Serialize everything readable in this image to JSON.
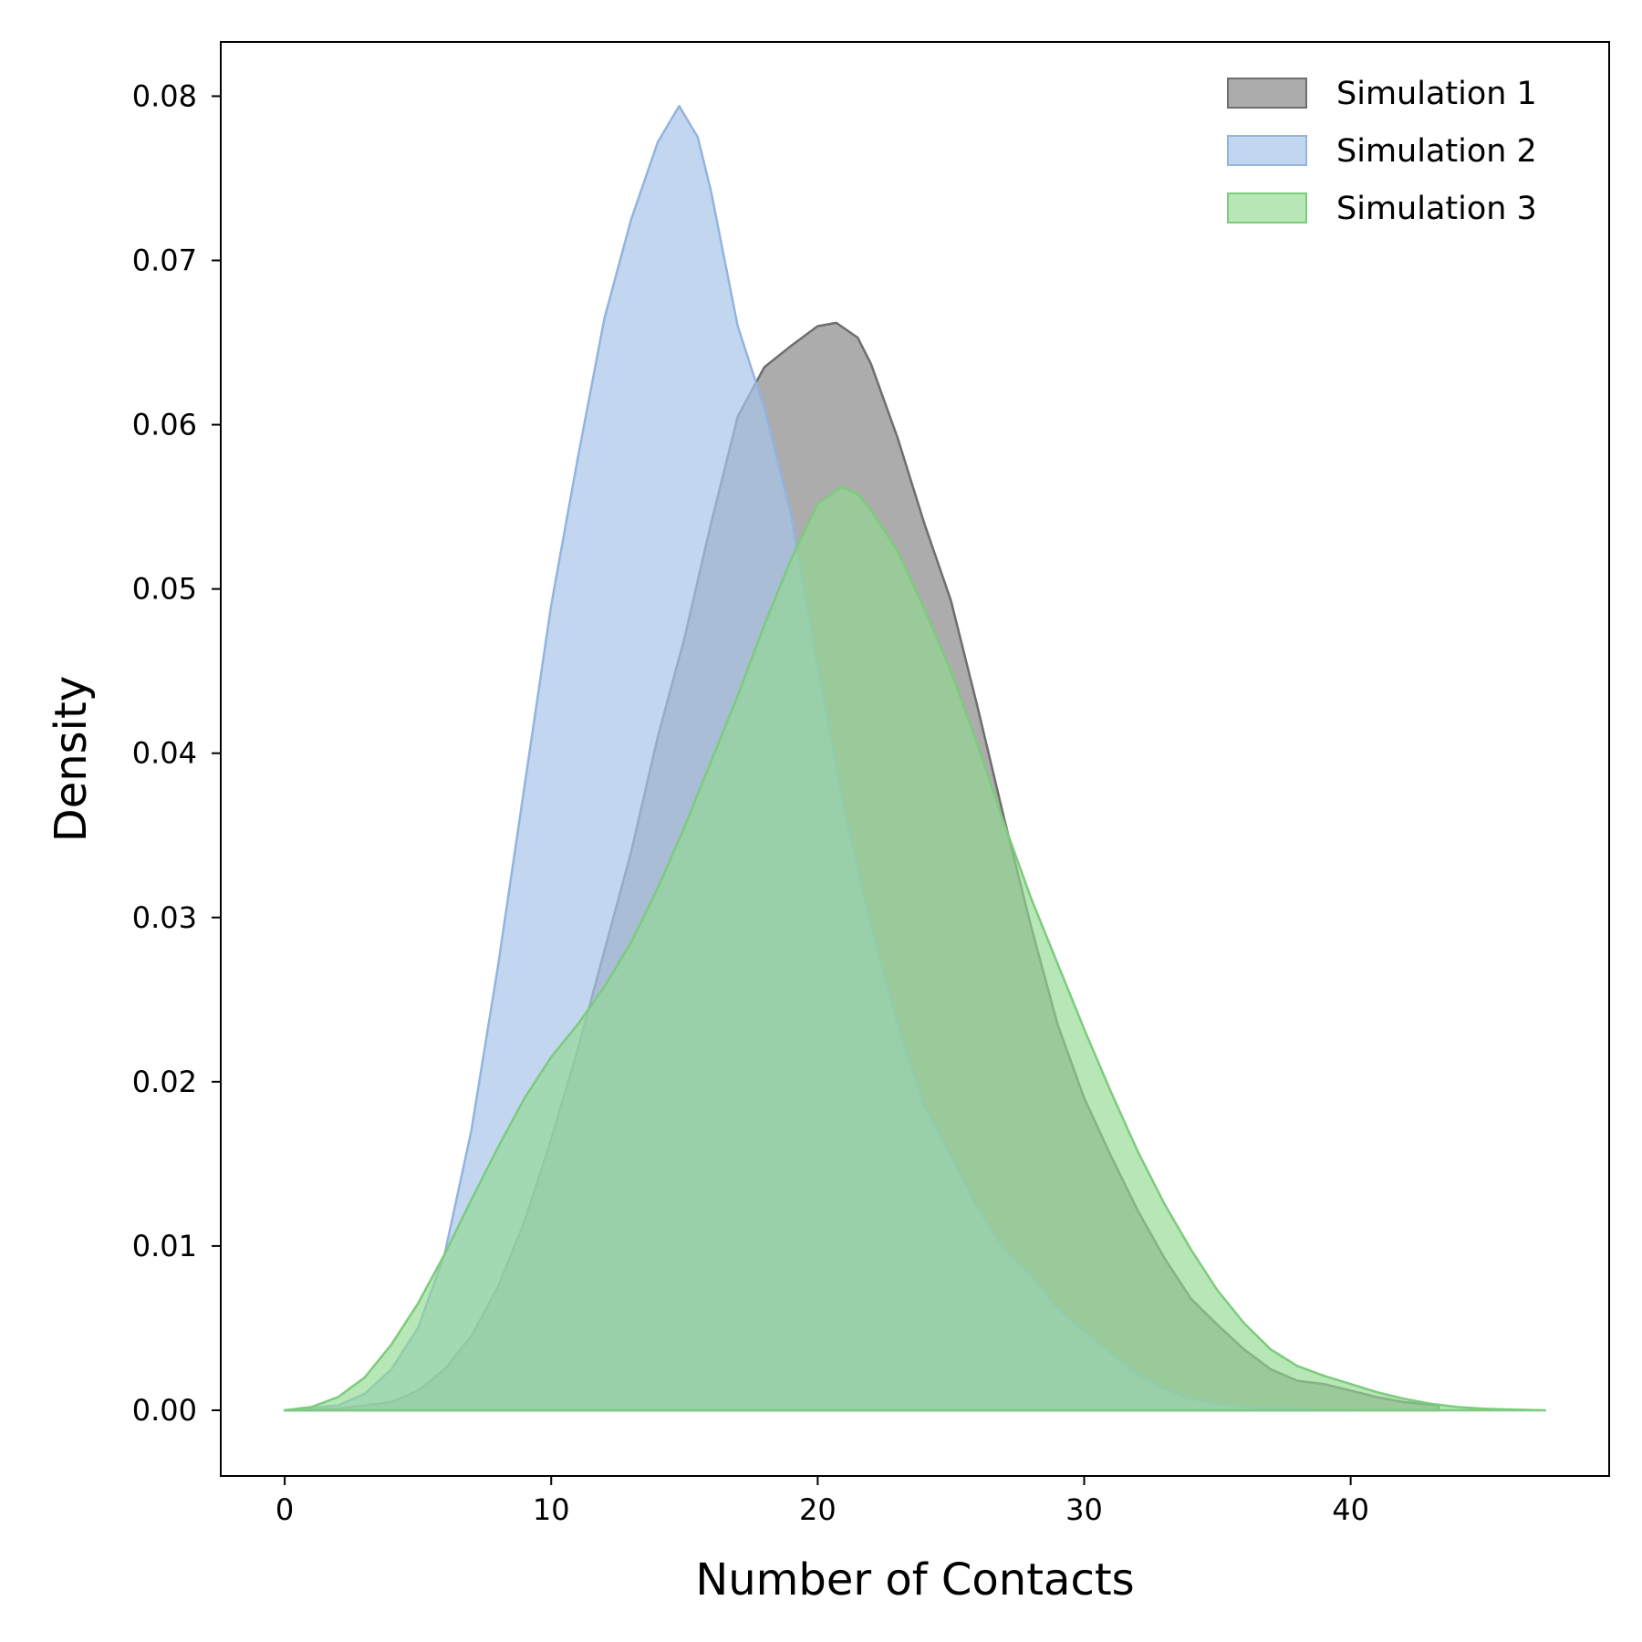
{
  "chart_data": {
    "type": "area",
    "title": "",
    "xlabel": "Number of Contacts",
    "ylabel": "Density",
    "xlim": [
      -2.4,
      49.7
    ],
    "ylim": [
      -0.004,
      0.0833
    ],
    "xticks": [
      0,
      10,
      20,
      30,
      40
    ],
    "xtick_labels": [
      "0",
      "10",
      "20",
      "30",
      "40"
    ],
    "yticks": [
      0.0,
      0.01,
      0.02,
      0.03,
      0.04,
      0.05,
      0.06,
      0.07,
      0.08
    ],
    "ytick_labels": [
      "0.00",
      "0.01",
      "0.02",
      "0.03",
      "0.04",
      "0.05",
      "0.06",
      "0.07",
      "0.08"
    ],
    "grid": false,
    "legend_position": "top-right",
    "series": [
      {
        "name": "Simulation 1",
        "fill": "#808080",
        "stroke": "#6e6e6e",
        "opacity": 0.65,
        "x": [
          0,
          2,
          4,
          5,
          6,
          7,
          8,
          9,
          10,
          11,
          12,
          13,
          14,
          15,
          16,
          17,
          18,
          19,
          20,
          20.7,
          21.5,
          22,
          23,
          24,
          25,
          26,
          27,
          28,
          29,
          30,
          31,
          32,
          33,
          34,
          35,
          36,
          37,
          38,
          39,
          40,
          41,
          42,
          43.3
        ],
        "y": [
          0,
          0.0001,
          0.0005,
          0.0012,
          0.0025,
          0.0045,
          0.0075,
          0.0115,
          0.0165,
          0.022,
          0.028,
          0.034,
          0.041,
          0.047,
          0.054,
          0.0605,
          0.0635,
          0.0648,
          0.066,
          0.0662,
          0.0653,
          0.0637,
          0.0592,
          0.054,
          0.0493,
          0.0428,
          0.036,
          0.0295,
          0.0235,
          0.019,
          0.0155,
          0.0122,
          0.0093,
          0.0068,
          0.0052,
          0.0037,
          0.0025,
          0.0018,
          0.0016,
          0.0012,
          0.0008,
          0.0005,
          0.0003
        ]
      },
      {
        "name": "Simulation 2",
        "fill": "#a8c4e8",
        "stroke": "#93b4e0",
        "opacity": 0.7,
        "x": [
          0,
          2,
          3,
          4,
          5,
          6,
          7,
          8,
          9,
          10,
          11,
          12,
          13,
          14,
          14.8,
          15.5,
          16,
          17,
          18,
          19,
          20,
          21,
          22,
          23,
          24,
          25,
          26,
          27,
          28,
          29,
          30,
          31,
          32,
          33,
          34,
          35,
          36,
          37,
          38,
          39,
          40
        ],
        "y": [
          0,
          0.0003,
          0.001,
          0.0025,
          0.005,
          0.0095,
          0.017,
          0.027,
          0.038,
          0.049,
          0.058,
          0.0665,
          0.0725,
          0.0772,
          0.0794,
          0.0775,
          0.0742,
          0.066,
          0.061,
          0.0545,
          0.0453,
          0.0365,
          0.0295,
          0.0235,
          0.0185,
          0.0155,
          0.0123,
          0.0098,
          0.0082,
          0.0062,
          0.0048,
          0.0035,
          0.0022,
          0.0013,
          0.0007,
          0.0004,
          0.0002,
          0.0001,
          0.0001,
          0,
          0
        ]
      },
      {
        "name": "Simulation 3",
        "fill": "#90d890",
        "stroke": "#7ccc7c",
        "opacity": 0.65,
        "x": [
          0,
          1,
          2,
          3,
          4,
          5,
          6,
          7,
          8,
          9,
          10,
          11,
          12,
          13,
          14,
          15,
          16,
          17,
          18,
          19,
          20,
          20.9,
          21.5,
          22,
          23,
          24,
          25,
          26,
          27,
          28,
          29,
          30,
          31,
          32,
          33,
          34,
          35,
          36,
          37,
          38,
          39,
          40,
          41,
          42,
          43,
          44,
          45,
          46,
          47.3
        ],
        "y": [
          0,
          0.0002,
          0.0008,
          0.002,
          0.004,
          0.0065,
          0.0095,
          0.0128,
          0.016,
          0.019,
          0.0215,
          0.0235,
          0.0258,
          0.0285,
          0.0318,
          0.0355,
          0.0395,
          0.0435,
          0.0478,
          0.0518,
          0.0552,
          0.0562,
          0.0558,
          0.0548,
          0.0523,
          0.0488,
          0.045,
          0.0405,
          0.0357,
          0.0312,
          0.0272,
          0.0232,
          0.0194,
          0.0158,
          0.0126,
          0.0098,
          0.0073,
          0.0053,
          0.0037,
          0.0027,
          0.0021,
          0.0016,
          0.0011,
          0.0007,
          0.0004,
          0.0002,
          0.0001,
          5e-05,
          0
        ]
      }
    ]
  }
}
